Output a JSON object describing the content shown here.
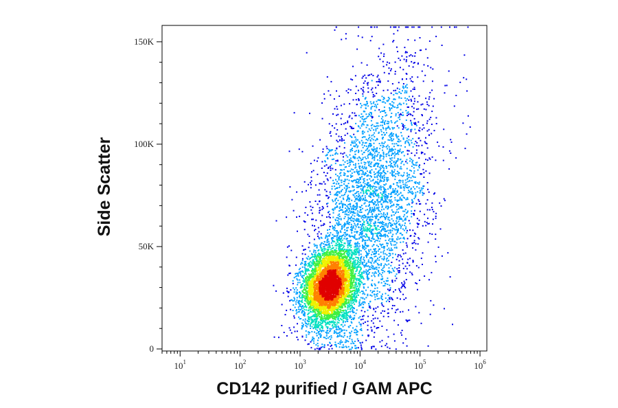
{
  "chart_data": {
    "type": "scatter",
    "subtype": "flow-cytometry density dot plot",
    "xlabel": "CD142 purified / GAM APC",
    "ylabel": "Side Scatter",
    "x_scale": "log",
    "xlim": [
      5,
      1300000
    ],
    "x_ticks": [
      {
        "value": 10,
        "base": "10",
        "exp": "1"
      },
      {
        "value": 100,
        "base": "10",
        "exp": "2"
      },
      {
        "value": 1000,
        "base": "10",
        "exp": "3"
      },
      {
        "value": 10000,
        "base": "10",
        "exp": "4"
      },
      {
        "value": 100000,
        "base": "10",
        "exp": "5"
      },
      {
        "value": 1000000,
        "base": "10",
        "exp": "6"
      }
    ],
    "y_scale": "linear",
    "ylim": [
      -1000,
      158000
    ],
    "y_ticks": [
      {
        "value": 0,
        "label": "0"
      },
      {
        "value": 50000,
        "label": "50K"
      },
      {
        "value": 100000,
        "label": "100K"
      },
      {
        "value": 150000,
        "label": "150K"
      }
    ],
    "grid": false,
    "legend": "none",
    "color_scale": [
      "#0000e6",
      "#00a0ff",
      "#00e0c0",
      "#40f040",
      "#f0f000",
      "#ff8000",
      "#e00000"
    ],
    "populations": [
      {
        "name": "",
        "center_x": 3000,
        "center_y": 31000,
        "spread_log10_x": 0.22,
        "spread_y": 9000,
        "weight": 0.58
      },
      {
        "name": "",
        "center_x": 15000,
        "center_y": 70000,
        "spread_log10_x": 0.5,
        "spread_y": 32000,
        "weight": 0.42
      }
    ],
    "background": "#ffffff",
    "axis_color": "#000000"
  }
}
